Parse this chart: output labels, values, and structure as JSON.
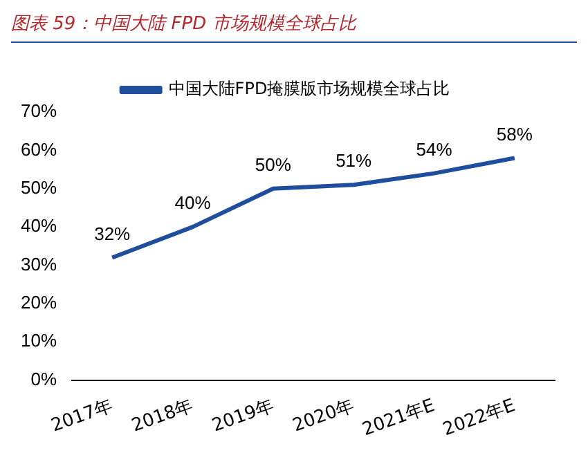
{
  "chart_data": {
    "type": "line",
    "title": "图表 59：中国大陆 FPD 市场规模全球占比",
    "categories": [
      "2017年",
      "2018年",
      "2019年",
      "2020年",
      "2021年E",
      "2022年E"
    ],
    "series": [
      {
        "name": "中国大陆FPD掩膜版市场规模全球占比",
        "color": "#1f4e9c",
        "values": [
          32,
          40,
          50,
          51,
          54,
          58
        ],
        "value_labels": [
          "32%",
          "40%",
          "50%",
          "51%",
          "54%",
          "58%"
        ]
      }
    ],
    "ylim": [
      0,
      70
    ],
    "yticks": [
      {
        "value": 0,
        "label": "0%"
      },
      {
        "value": 10,
        "label": "10%"
      },
      {
        "value": 20,
        "label": "20%"
      },
      {
        "value": 30,
        "label": "30%"
      },
      {
        "value": 40,
        "label": "40%"
      },
      {
        "value": 50,
        "label": "50%"
      },
      {
        "value": 60,
        "label": "60%"
      },
      {
        "value": 70,
        "label": "70%"
      }
    ],
    "grid": false,
    "legend": "top",
    "marker": "none",
    "line_style": "solid"
  }
}
